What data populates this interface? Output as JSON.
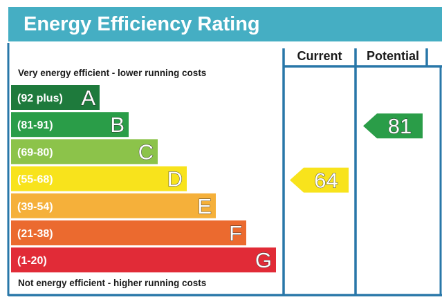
{
  "chart_data": {
    "type": "bar",
    "title": "Energy Efficiency Rating",
    "top_caption": "Very energy efficient - lower running costs",
    "bottom_caption": "Not energy efficient - higher running costs",
    "columns": [
      "Current",
      "Potential"
    ],
    "bands": [
      {
        "letter": "A",
        "range": "(92 plus)",
        "color": "#1e7a3c",
        "letter_color": "#ffffff"
      },
      {
        "letter": "B",
        "range": "(81-91)",
        "color": "#2a9d48",
        "letter_color": "#ffffff"
      },
      {
        "letter": "C",
        "range": "(69-80)",
        "color": "#8cc34a",
        "letter_color": "#ffffff"
      },
      {
        "letter": "D",
        "range": "(55-68)",
        "color": "#f8e31c",
        "letter_color": "#ffffff"
      },
      {
        "letter": "E",
        "range": "(39-54)",
        "color": "#f5b03a",
        "letter_color": "#ffffff"
      },
      {
        "letter": "F",
        "range": "(21-38)",
        "color": "#eb6a2f",
        "letter_color": "#ffffff"
      },
      {
        "letter": "G",
        "range": "(1-20)",
        "color": "#e12b37",
        "letter_color": "#ffffff"
      }
    ],
    "current": {
      "value": "64",
      "band": "D",
      "color": "#f8e31c"
    },
    "potential": {
      "value": "81",
      "band": "B",
      "color": "#2a9d48"
    },
    "colors": {
      "header": "#45aec3",
      "frame": "#2877a8",
      "text": "#1a1a1a"
    }
  }
}
